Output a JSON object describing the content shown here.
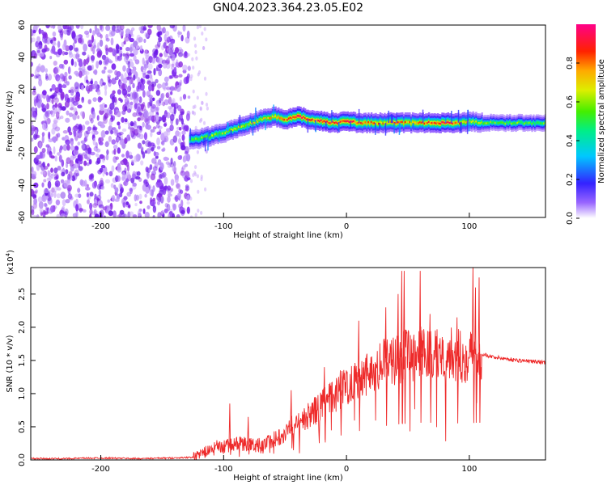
{
  "title": "GN04.2023.364.23.05.E02",
  "colors": {
    "snr_line": "#ee2a2a",
    "spectrogram_noise": "#8a2be2",
    "axis": "#000000"
  },
  "chart_data": [
    {
      "type": "heatmap",
      "name": "spectrogram",
      "title": "GN04.2023.364.23.05.E02",
      "xlabel": "Height of straight line (km)",
      "ylabel": "Frequency (Hz)",
      "xlim": [
        -257,
        162
      ],
      "ylim": [
        -60,
        60
      ],
      "xticks": [
        -200,
        -100,
        0,
        100
      ],
      "yticks": [
        -60,
        -40,
        -20,
        0,
        20,
        40,
        60
      ],
      "colorbar": {
        "label": "Normalized spectral amplitude",
        "range": [
          0,
          1
        ],
        "ticks": [
          "0.0",
          "0.2",
          "0.4",
          "0.6",
          "0.8"
        ],
        "tick_values": [
          0.0,
          0.2,
          0.4,
          0.6,
          0.8
        ],
        "colormap": "rainbow (white-purple-blue-cyan-green-yellow-red-pink)"
      },
      "noise_region_x": [
        -257,
        -128
      ],
      "signal_start_x": -128,
      "ridge": {
        "x": [
          -128,
          -115,
          -100,
          -85,
          -70,
          -60,
          -50,
          -40,
          -30,
          -20,
          -10,
          0,
          10,
          20,
          30,
          40,
          50,
          60,
          70,
          80,
          90,
          100,
          110,
          120,
          130,
          140,
          150,
          162
        ],
        "freq_hz": [
          -12,
          -10,
          -7,
          -3,
          1,
          3,
          1,
          3,
          1,
          0,
          -1,
          0,
          -1,
          -1,
          -1,
          -1,
          -1,
          -1,
          -1,
          -1,
          -1,
          0,
          -1,
          -1,
          -1,
          -1,
          -1,
          -1
        ],
        "amplitude": [
          0.5,
          0.55,
          0.55,
          0.6,
          0.6,
          0.7,
          0.75,
          0.9,
          0.75,
          0.85,
          0.8,
          0.85,
          0.75,
          0.75,
          0.7,
          0.8,
          0.7,
          0.75,
          0.8,
          0.85,
          0.75,
          0.6,
          0.55,
          0.5,
          0.5,
          0.5,
          0.5,
          0.5
        ]
      }
    },
    {
      "type": "line",
      "name": "snr",
      "xlabel": "Height of straight line (km)",
      "ylabel": "SNR (10 * v/v)",
      "multiplier_label": "(x10",
      "multiplier_exp": "4",
      "multiplier_close": ")",
      "xlim": [
        -257,
        162
      ],
      "ylim": [
        0,
        2.9
      ],
      "xticks": [
        -200,
        -100,
        0,
        100
      ],
      "yticks": [
        "0.0",
        "0.5",
        "1.0",
        "1.5",
        "2.0",
        "2.5"
      ],
      "ytick_values": [
        0.0,
        0.5,
        1.0,
        1.5,
        2.0,
        2.5
      ],
      "series": [
        {
          "name": "SNR",
          "x": [
            -257,
            -230,
            -200,
            -170,
            -140,
            -125,
            -115,
            -105,
            -95,
            -85,
            -75,
            -65,
            -55,
            -45,
            -35,
            -25,
            -15,
            -5,
            5,
            15,
            25,
            35,
            45,
            55,
            65,
            75,
            85,
            95,
            105,
            110,
            120,
            140,
            162
          ],
          "y": [
            0.02,
            0.02,
            0.03,
            0.02,
            0.03,
            0.04,
            0.12,
            0.2,
            0.22,
            0.25,
            0.22,
            0.25,
            0.35,
            0.5,
            0.6,
            0.75,
            0.9,
            1.05,
            1.2,
            1.3,
            1.4,
            1.5,
            1.55,
            1.6,
            1.6,
            1.6,
            1.6,
            1.55,
            1.6,
            1.6,
            1.55,
            1.5,
            1.47
          ]
        }
      ],
      "spikes": {
        "x": [
          -95,
          -80,
          -45,
          -18,
          -5,
          10,
          32,
          42,
          45,
          47,
          60,
          68,
          90,
          103,
          105,
          108
        ],
        "y": [
          0.85,
          0.65,
          1.05,
          1.4,
          1.35,
          2.1,
          2.3,
          2.5,
          2.85,
          2.85,
          2.85,
          2.2,
          2.15,
          2.95,
          2.6,
          2.75
        ]
      }
    }
  ]
}
